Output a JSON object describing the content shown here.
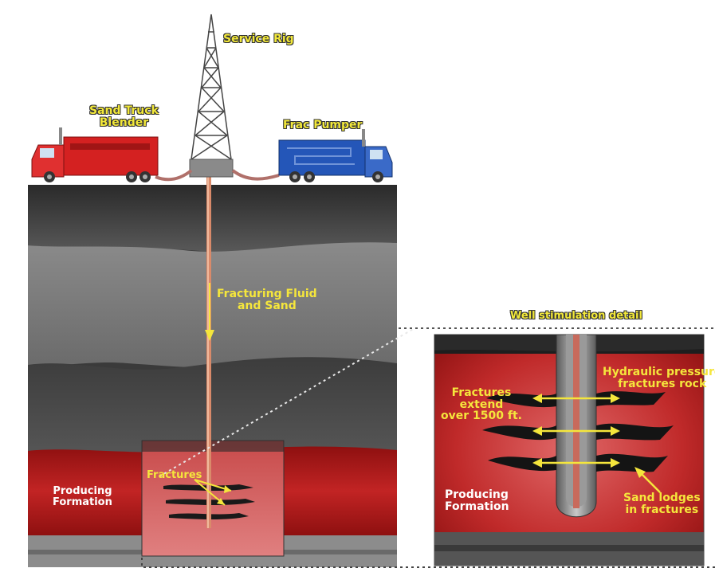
{
  "labels": {
    "service_rig": "Service Rig",
    "sand_truck": [
      "Sand Truck",
      "Blender"
    ],
    "frac_pumper": "Frac Pumper",
    "fracturing_fluid": [
      "Fracturing Fluid",
      "and Sand"
    ],
    "fractures": "Fractures",
    "producing_formation_left": [
      "Producing",
      "Formation"
    ],
    "detail_title": "Well stimulation detail",
    "hydraulic_pressure": [
      "Hydraulic pressure",
      "fractures rock"
    ],
    "fractures_extend": [
      "Fractures",
      "extend",
      "over 1500 ft."
    ],
    "producing_formation_detail": [
      "Producing",
      "Formation"
    ],
    "sand_lodges": [
      "Sand lodges",
      "in fractures"
    ]
  },
  "colors": {
    "formation_red": "#b81c1c",
    "truck_red": "#d42121",
    "truck_blue": "#2456b8",
    "label_yellow": "#f5e63c",
    "pipe": "#d98a6a"
  }
}
